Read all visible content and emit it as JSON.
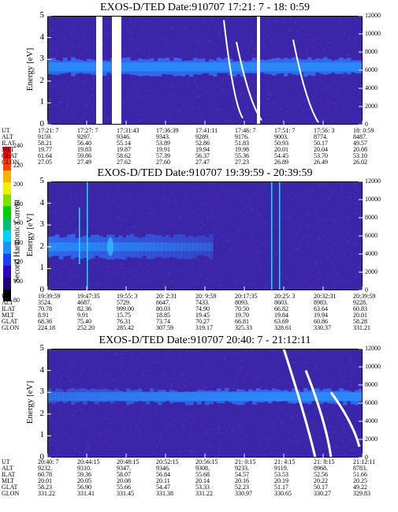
{
  "colors": {
    "background": "#3b25a8",
    "band": "#2f6cf0",
    "band_core": "#2a8cf8",
    "noise": "#5a2bbf",
    "bright": "#3bd0ff",
    "dropout": "#ffffff",
    "colorbar": [
      "#000000",
      "#20007a",
      "#3300c8",
      "#1f3cff",
      "#1e90ff",
      "#00d0ff",
      "#00c070",
      "#00d000",
      "#80e000",
      "#f0f000",
      "#ffb000",
      "#ff4000",
      "#ff0000"
    ]
  },
  "colorbar": {
    "label": "Second Harmonic Current",
    "ticks": [
      "80",
      "100",
      "120",
      "140",
      "160",
      "180",
      "200",
      "220",
      "240"
    ]
  },
  "ephemeris_labels": [
    "UT",
    "ALT",
    "ILAT",
    "MLT",
    "GLAT",
    "GLON"
  ],
  "chart_data": [
    {
      "type": "heatmap",
      "title": "EXOS-D/TED   Date:910707  17:21: 7 - 18: 0:59",
      "ylabel": "Energy [eV]",
      "y2label": "Temperature [K]",
      "ylim": [
        0,
        5
      ],
      "y_ticks": [
        "0",
        "1",
        "2",
        "3",
        "4",
        "5"
      ],
      "y2lim": [
        0,
        12000
      ],
      "y2_ticks": [
        "0",
        "2000",
        "4000",
        "6000",
        "8000",
        "10000",
        "12000"
      ],
      "band_energy": [
        2.2,
        3.1
      ],
      "columns": [
        "17:21: 7",
        "17:27: 7",
        "17:31:43",
        "17:36:39",
        "17:41:11",
        "17:46: 7",
        "17:51: 7",
        "17:56: 3",
        "18: 0:59"
      ],
      "ephemeris": {
        "UT": [
          "17:21: 7",
          "17:27: 7",
          "17:31:43",
          "17:36:39",
          "17:41:11",
          "17:46: 7",
          "17:51: 7",
          "17:56: 3",
          "18: 0:59"
        ],
        "ALT": [
          "9159.",
          "9297.",
          "9346.",
          "9343.",
          "9289.",
          "9176.",
          "9003.",
          "8774.",
          "8487."
        ],
        "ILAT": [
          "58.21",
          "56.40",
          "55.14",
          "53.89",
          "52.86",
          "51.83",
          "50.93",
          "50.17",
          "49.57"
        ],
        "MLT": [
          "19.77",
          "19.83",
          "19.87",
          "19.91",
          "19.94",
          "19.98",
          "20.01",
          "20.04",
          "20.08"
        ],
        "GLAT": [
          "61.64",
          "59.86",
          "58.62",
          "57.39",
          "56.37",
          "55.36",
          "54.45",
          "53.70",
          "53.10"
        ],
        "GLON": [
          "27.05",
          "27.49",
          "27.62",
          "27.60",
          "27.47",
          "27.23",
          "26.89",
          "26.49",
          "26.02"
        ]
      },
      "dropouts_time_fraction": [
        [
          0.155,
          0.175
        ],
        [
          0.205,
          0.235
        ],
        [
          0.665,
          0.675
        ]
      ]
    },
    {
      "type": "heatmap",
      "title": "EXOS-D/TED   Date:910707  19:39:59 - 20:39:59",
      "ylabel": "Energy [eV]",
      "y2label": "Temperature [K]",
      "ylim": [
        0,
        5
      ],
      "y_ticks": [
        "0",
        "1",
        "2",
        "3",
        "4",
        "5"
      ],
      "y2lim": [
        0,
        12000
      ],
      "y2_ticks": [
        "0",
        "2000",
        "4000",
        "6000",
        "8000",
        "10000",
        "12000"
      ],
      "band_energy": [
        1.4,
        2.6
      ],
      "columns": [
        "19:39:59",
        "19:47:35",
        "19:55: 3",
        "20: 2:31",
        "20: 9:59",
        "20:17:35",
        "20:25: 3",
        "20:32:31",
        "20:39:59"
      ],
      "ephemeris": {
        "UT": [
          "19:39:59",
          "19:47:35",
          "19:55: 3",
          "20: 2:31",
          "20: 9:59",
          "20:17:35",
          "20:25: 3",
          "20:32:31",
          "20:39:59"
        ],
        "ALT": [
          "3524.",
          "4687.",
          "5729.",
          "6647.",
          "7433.",
          "8093.",
          "8603.",
          "8983.",
          "9228."
        ],
        "ILAT": [
          "70.78",
          "82.36",
          "999.00",
          "80.03",
          "74.90",
          "70.50",
          "66.82",
          "63.64",
          "60.83"
        ],
        "MLT": [
          "8.91",
          "9.91",
          "15.75",
          "18.85",
          "19.45",
          "19.70",
          "19.84",
          "19.94",
          "20.01"
        ],
        "GLAT": [
          "68.36",
          "75.40",
          "76.31",
          "73.74",
          "70.27",
          "66.81",
          "63.69",
          "60.86",
          "58.28"
        ],
        "GLON": [
          "224.18",
          "252.20",
          "285.42",
          "307.59",
          "319.17",
          "325.33",
          "328.61",
          "330.37",
          "331.21"
        ]
      },
      "dropouts_time_fraction": []
    },
    {
      "type": "heatmap",
      "title": "EXOS-D/TED   Date:910707  20:40: 7 - 21:12:11",
      "ylabel": "Energy [eV]",
      "y2label": "Temperature [K]",
      "ylim": [
        0,
        5
      ],
      "y_ticks": [
        "0",
        "1",
        "2",
        "3",
        "4",
        "5"
      ],
      "y2lim": [
        0,
        12000
      ],
      "y2_ticks": [
        "0",
        "2000",
        "4000",
        "6000",
        "8000",
        "10000",
        "12000"
      ],
      "band_energy": [
        2.4,
        3.2
      ],
      "columns": [
        "20:40: 7",
        "20:44:15",
        "20:48:15",
        "20:52:15",
        "20:56:15",
        "21: 0:15",
        "21: 4:15",
        "21: 8:15",
        "21:12:11"
      ],
      "ephemeris": {
        "UT": [
          "20:40: 7",
          "20:44:15",
          "20:48:15",
          "20:52:15",
          "20:56:15",
          "21: 0:15",
          "21: 4:15",
          "21: 8:15",
          "21:12:11"
        ],
        "ALT": [
          "9232.",
          "9310.",
          "9347.",
          "9346.",
          "9308.",
          "9233.",
          "9119.",
          "8968.",
          "8783."
        ],
        "ILAT": [
          "60.78",
          "59.36",
          "58.07",
          "56.84",
          "55.68",
          "54.57",
          "53.53",
          "52.56",
          "51.66"
        ],
        "MLT": [
          "20.01",
          "20.05",
          "20.08",
          "20.11",
          "20.14",
          "20.16",
          "20.19",
          "20.22",
          "20.25"
        ],
        "GLAT": [
          "58.23",
          "56.90",
          "55.66",
          "54.47",
          "53.33",
          "52.23",
          "51.17",
          "50.17",
          "49.22"
        ],
        "GLON": [
          "331.22",
          "331.41",
          "331.45",
          "331.38",
          "331.22",
          "330.97",
          "330.65",
          "330.27",
          "329.83"
        ]
      },
      "dropouts_time_fraction": []
    }
  ]
}
